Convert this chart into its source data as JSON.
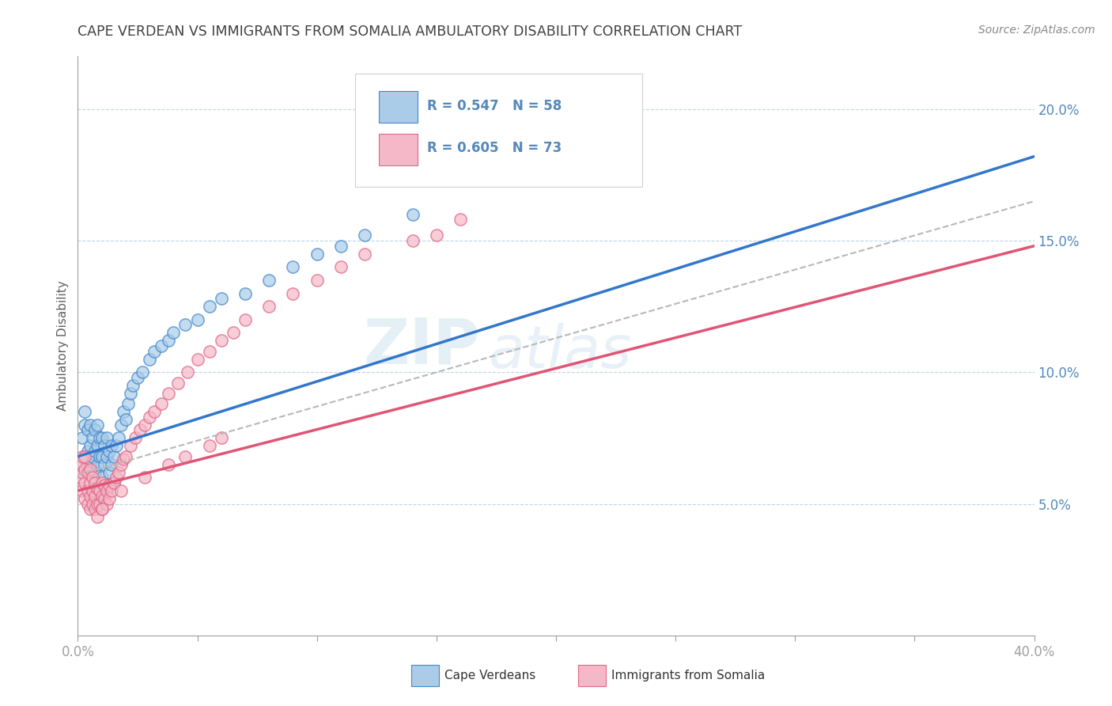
{
  "title": "CAPE VERDEAN VS IMMIGRANTS FROM SOMALIA AMBULATORY DISABILITY CORRELATION CHART",
  "source": "Source: ZipAtlas.com",
  "ylabel": "Ambulatory Disability",
  "xlim": [
    0.0,
    0.4
  ],
  "ylim": [
    0.0,
    0.22
  ],
  "xticks": [
    0.0,
    0.05,
    0.1,
    0.15,
    0.2,
    0.25,
    0.3,
    0.35,
    0.4
  ],
  "yticks": [
    0.05,
    0.1,
    0.15,
    0.2
  ],
  "ytick_labels": [
    "5.0%",
    "10.0%",
    "15.0%",
    "20.0%"
  ],
  "watermark_zip": "ZIP",
  "watermark_atlas": "atlas",
  "blue_fill": "#aacce8",
  "pink_fill": "#f4b8c8",
  "blue_edge": "#4488cc",
  "pink_edge": "#e06888",
  "blue_line": "#3377cc",
  "pink_line": "#e05575",
  "gray_line": "#b8b8b8",
  "grid_color": "#c0d4e8",
  "title_color": "#404040",
  "axis_color": "#5588bb",
  "bg_color": "#ffffff",
  "cape_verdean_x": [
    0.002,
    0.003,
    0.003,
    0.004,
    0.004,
    0.005,
    0.005,
    0.005,
    0.006,
    0.006,
    0.007,
    0.007,
    0.007,
    0.008,
    0.008,
    0.008,
    0.009,
    0.009,
    0.01,
    0.01,
    0.01,
    0.011,
    0.011,
    0.012,
    0.012,
    0.013,
    0.013,
    0.014,
    0.014,
    0.015,
    0.015,
    0.016,
    0.017,
    0.018,
    0.019,
    0.02,
    0.021,
    0.022,
    0.023,
    0.025,
    0.027,
    0.03,
    0.032,
    0.035,
    0.038,
    0.04,
    0.045,
    0.05,
    0.055,
    0.06,
    0.07,
    0.08,
    0.09,
    0.1,
    0.11,
    0.12,
    0.14,
    0.19
  ],
  "cape_verdean_y": [
    0.075,
    0.08,
    0.085,
    0.07,
    0.078,
    0.065,
    0.072,
    0.08,
    0.068,
    0.075,
    0.062,
    0.07,
    0.078,
    0.065,
    0.072,
    0.08,
    0.068,
    0.075,
    0.06,
    0.068,
    0.075,
    0.065,
    0.072,
    0.068,
    0.075,
    0.062,
    0.07,
    0.065,
    0.072,
    0.058,
    0.068,
    0.072,
    0.075,
    0.08,
    0.085,
    0.082,
    0.088,
    0.092,
    0.095,
    0.098,
    0.1,
    0.105,
    0.108,
    0.11,
    0.112,
    0.115,
    0.118,
    0.12,
    0.125,
    0.128,
    0.13,
    0.135,
    0.14,
    0.145,
    0.148,
    0.152,
    0.16,
    0.175
  ],
  "somalia_x": [
    0.001,
    0.001,
    0.002,
    0.002,
    0.002,
    0.003,
    0.003,
    0.003,
    0.003,
    0.004,
    0.004,
    0.004,
    0.005,
    0.005,
    0.005,
    0.005,
    0.006,
    0.006,
    0.006,
    0.007,
    0.007,
    0.007,
    0.008,
    0.008,
    0.008,
    0.009,
    0.009,
    0.01,
    0.01,
    0.01,
    0.011,
    0.011,
    0.012,
    0.012,
    0.013,
    0.013,
    0.014,
    0.015,
    0.016,
    0.017,
    0.018,
    0.019,
    0.02,
    0.022,
    0.024,
    0.026,
    0.028,
    0.03,
    0.032,
    0.035,
    0.038,
    0.042,
    0.046,
    0.05,
    0.055,
    0.06,
    0.065,
    0.07,
    0.08,
    0.09,
    0.1,
    0.11,
    0.12,
    0.14,
    0.15,
    0.16,
    0.06,
    0.055,
    0.045,
    0.038,
    0.028,
    0.018,
    0.01
  ],
  "somalia_y": [
    0.06,
    0.065,
    0.055,
    0.062,
    0.068,
    0.052,
    0.058,
    0.063,
    0.068,
    0.05,
    0.055,
    0.062,
    0.048,
    0.053,
    0.058,
    0.063,
    0.05,
    0.055,
    0.06,
    0.048,
    0.053,
    0.058,
    0.045,
    0.05,
    0.056,
    0.05,
    0.055,
    0.048,
    0.053,
    0.058,
    0.052,
    0.057,
    0.05,
    0.055,
    0.052,
    0.057,
    0.055,
    0.058,
    0.06,
    0.062,
    0.065,
    0.067,
    0.068,
    0.072,
    0.075,
    0.078,
    0.08,
    0.083,
    0.085,
    0.088,
    0.092,
    0.096,
    0.1,
    0.105,
    0.108,
    0.112,
    0.115,
    0.12,
    0.125,
    0.13,
    0.135,
    0.14,
    0.145,
    0.15,
    0.152,
    0.158,
    0.075,
    0.072,
    0.068,
    0.065,
    0.06,
    0.055,
    0.048
  ],
  "blue_line_x0": 0.0,
  "blue_line_y0": 0.068,
  "blue_line_x1": 0.4,
  "blue_line_y1": 0.182,
  "pink_line_x0": 0.0,
  "pink_line_y0": 0.055,
  "pink_line_x1": 0.4,
  "pink_line_y1": 0.148,
  "gray_line_x0": 0.0,
  "gray_line_y0": 0.061,
  "gray_line_x1": 0.4,
  "gray_line_y1": 0.165
}
